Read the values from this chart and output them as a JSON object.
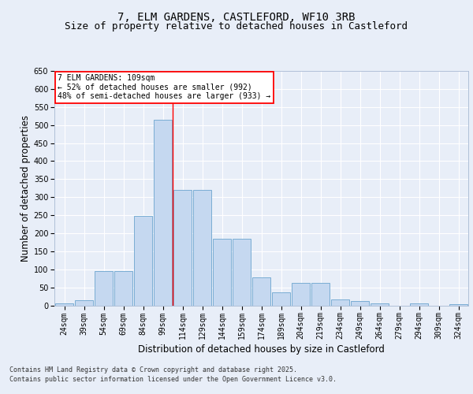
{
  "title_line1": "7, ELM GARDENS, CASTLEFORD, WF10 3RB",
  "title_line2": "Size of property relative to detached houses in Castleford",
  "xlabel": "Distribution of detached houses by size in Castleford",
  "ylabel": "Number of detached properties",
  "categories": [
    "24sqm",
    "39sqm",
    "54sqm",
    "69sqm",
    "84sqm",
    "99sqm",
    "114sqm",
    "129sqm",
    "144sqm",
    "159sqm",
    "174sqm",
    "189sqm",
    "204sqm",
    "219sqm",
    "234sqm",
    "249sqm",
    "264sqm",
    "279sqm",
    "294sqm",
    "309sqm",
    "324sqm"
  ],
  "bar_heights": [
    5,
    15,
    95,
    95,
    248,
    515,
    320,
    320,
    185,
    185,
    78,
    35,
    62,
    62,
    17,
    12,
    5,
    0,
    5,
    0,
    3
  ],
  "bar_color": "#c5d8f0",
  "bar_edge_color": "#7aadd4",
  "background_color": "#e8eef8",
  "grid_color": "#ffffff",
  "vline_x": 5.5,
  "vline_color": "red",
  "annotation_text": "7 ELM GARDENS: 109sqm\n← 52% of detached houses are smaller (992)\n48% of semi-detached houses are larger (933) →",
  "ylim": [
    0,
    650
  ],
  "footer_line1": "Contains HM Land Registry data © Crown copyright and database right 2025.",
  "footer_line2": "Contains public sector information licensed under the Open Government Licence v3.0.",
  "title_fontsize": 10,
  "subtitle_fontsize": 9,
  "tick_fontsize": 7,
  "label_fontsize": 8.5,
  "ann_fontsize": 7,
  "footer_fontsize": 6
}
